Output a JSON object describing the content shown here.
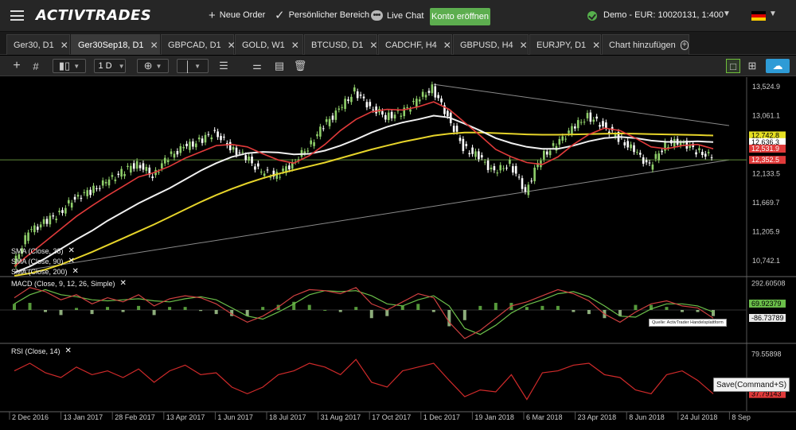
{
  "topbar": {
    "logo": "ACTIVTRADES",
    "new_order": "Neue Order",
    "personal_area": "Persönlicher Bereich",
    "live_chat": "Live Chat",
    "open_account": "Konto eröffnen",
    "account": "Demo - EUR: 10020131, 1:400",
    "language": "de",
    "icons": [
      "menu-icon",
      "plus-icon",
      "check-icon",
      "chat-bubble-icon",
      "status-check-icon",
      "chevron-down-icon",
      "flag-de-icon"
    ]
  },
  "tabs": [
    {
      "label": "Ger30, D1",
      "active": false
    },
    {
      "label": "Ger30Sep18, D1",
      "active": true
    },
    {
      "label": "GBPCAD, D1",
      "active": false
    },
    {
      "label": "GOLD, W1",
      "active": false
    },
    {
      "label": "BTCUSD, D1",
      "active": false
    },
    {
      "label": "CADCHF, H4",
      "active": false
    },
    {
      "label": "GBPUSD, H4",
      "active": false
    },
    {
      "label": "EURJPY, D1",
      "active": false
    }
  ],
  "add_chart": "Chart hinzufügen",
  "toolbar": {
    "timeframe": "1 D",
    "icons": [
      "crosshair-icon",
      "grid-icon",
      "candlestick-icon",
      "plus-circle-icon",
      "line-tool-icon",
      "fibonacci-icon",
      "sliders-icon",
      "clipboard-icon",
      "trash-icon",
      "layout-single-icon",
      "layout-grid-icon",
      "cloud-icon"
    ]
  },
  "indicators": {
    "sma38": "SMA (Close, 38)",
    "sma90": "SMA (Close, 90)",
    "sma200": "SMA (Close, 200)",
    "macd": "MACD (Close, 9, 12, 26, Simple)",
    "rsi": "RSI (Close, 14)"
  },
  "source_note": "Quelle: ActivTrader Handelsplattform",
  "save_tooltip": "Save(Command+S)",
  "colors": {
    "price_up": "#8fcf6a",
    "price_down": "#ffffff",
    "sma38": "#e03a3a",
    "sma90": "#f0f0f0",
    "sma200": "#e6d42a",
    "macd_line": "#d04040",
    "macd_signal": "#6bbf4a",
    "rsi_line": "#d02a2a",
    "trendline": "#8a8a8a",
    "level_line": "#5f8a3a"
  },
  "chart_data": [
    {
      "type": "line",
      "title": "Ger30Sep18, D1",
      "x_ticks": [
        "2 Dec 2016",
        "13 Jan 2017",
        "28 Feb 2017",
        "13 Apr 2017",
        "1 Jun 2017",
        "18 Jul 2017",
        "31 Aug 2017",
        "17 Oct 2017",
        "1 Dec 2017",
        "19 Jan 2018",
        "6 Mar 2018",
        "23 Apr 2018",
        "8 Jun 2018",
        "24 Jul 2018",
        "8 Sep"
      ],
      "y_ticks": [
        "13,524.9",
        "13,061.1",
        "12,597.3",
        "12,133.5",
        "11,669.7",
        "11,205.9",
        "10,742.1"
      ],
      "ylim": [
        10500,
        13650
      ],
      "price_badges": [
        {
          "label": "12,742.8",
          "value": 12742.8,
          "bg": "#e6e023",
          "fg": "#000"
        },
        {
          "label": "12,636.3",
          "value": 12636.3,
          "bg": "#ffffff",
          "fg": "#000"
        },
        {
          "label": "12,531.9",
          "value": 12531.9,
          "bg": "#e03a3a",
          "fg": "#fff"
        },
        {
          "label": "12,352.5",
          "value": 12352.5,
          "bg": "#e03a3a",
          "fg": "#fff"
        }
      ],
      "level": 12352.5,
      "series": [
        {
          "name": "Close",
          "values": [
            10650,
            11200,
            11350,
            11500,
            11750,
            11850,
            12000,
            12150,
            12300,
            12100,
            12400,
            12550,
            12650,
            12800,
            12550,
            12400,
            12150,
            12100,
            12300,
            12550,
            12900,
            13150,
            13450,
            13200,
            13050,
            13100,
            13300,
            13500,
            13050,
            12550,
            12400,
            12150,
            12300,
            11850,
            12400,
            12600,
            12850,
            13050,
            12900,
            12700,
            12500,
            12250,
            12600,
            12650,
            12500,
            12400
          ]
        },
        {
          "name": "SMA (Close, 38)",
          "values": [
            10650,
            10850,
            11050,
            11250,
            11450,
            11620,
            11780,
            11930,
            12080,
            12150,
            12250,
            12380,
            12480,
            12580,
            12600,
            12560,
            12450,
            12350,
            12300,
            12420,
            12600,
            12820,
            13000,
            13120,
            13160,
            13150,
            13200,
            13280,
            13160,
            12950,
            12740,
            12520,
            12400,
            12310,
            12280,
            12400,
            12600,
            12760,
            12860,
            12820,
            12700,
            12560,
            12530,
            12580,
            12600,
            12530
          ]
        },
        {
          "name": "SMA (Close, 90)",
          "values": [
            10550,
            10650,
            10780,
            10930,
            11080,
            11220,
            11380,
            11520,
            11660,
            11780,
            11900,
            12040,
            12180,
            12300,
            12400,
            12460,
            12480,
            12470,
            12440,
            12450,
            12500,
            12580,
            12680,
            12790,
            12880,
            12950,
            13000,
            13060,
            13030,
            12930,
            12820,
            12700,
            12620,
            12560,
            12530,
            12530,
            12580,
            12650,
            12700,
            12720,
            12700,
            12660,
            12640,
            12640,
            12650,
            12636
          ]
        },
        {
          "name": "SMA (Close, 200)",
          "values": [
            10500,
            10540,
            10600,
            10680,
            10780,
            10880,
            10990,
            11100,
            11210,
            11320,
            11440,
            11560,
            11680,
            11790,
            11890,
            11980,
            12060,
            12130,
            12190,
            12250,
            12310,
            12380,
            12450,
            12520,
            12580,
            12640,
            12690,
            12740,
            12770,
            12790,
            12790,
            12780,
            12770,
            12760,
            12755,
            12755,
            12760,
            12765,
            12770,
            12775,
            12770,
            12765,
            12760,
            12755,
            12750,
            12742
          ]
        }
      ],
      "macd_ticks": [
        "292.60508",
        "69.92379",
        "-86.73789"
      ],
      "macd": {
        "macd_line": [
          120,
          220,
          180,
          100,
          150,
          60,
          120,
          80,
          150,
          40,
          110,
          140,
          120,
          60,
          -40,
          -120,
          -60,
          30,
          140,
          200,
          190,
          160,
          220,
          60,
          0,
          80,
          160,
          120,
          -120,
          -280,
          -200,
          -80,
          40,
          80,
          140,
          200,
          160,
          90,
          -40,
          -120,
          -20,
          60,
          90,
          40,
          20,
          -80
        ],
        "signal_line": [
          60,
          150,
          200,
          150,
          130,
          100,
          90,
          100,
          110,
          90,
          80,
          110,
          130,
          100,
          20,
          -60,
          -90,
          -20,
          60,
          150,
          190,
          180,
          190,
          140,
          60,
          40,
          100,
          140,
          40,
          -180,
          -240,
          -150,
          -30,
          50,
          100,
          160,
          180,
          130,
          40,
          -60,
          -70,
          10,
          60,
          60,
          40,
          -20
        ]
      },
      "rsi_ticks": [
        "79.55898",
        "37.79143"
      ],
      "rsi": [
        62,
        70,
        60,
        55,
        66,
        58,
        62,
        55,
        64,
        50,
        62,
        68,
        58,
        60,
        45,
        38,
        45,
        58,
        62,
        70,
        66,
        58,
        74,
        50,
        45,
        62,
        66,
        70,
        52,
        35,
        42,
        40,
        58,
        32,
        60,
        62,
        68,
        70,
        58,
        55,
        42,
        38,
        58,
        62,
        52,
        38
      ]
    }
  ]
}
